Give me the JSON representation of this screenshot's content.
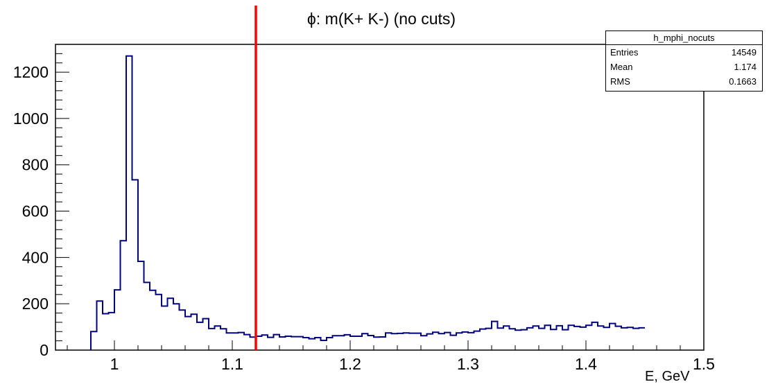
{
  "chart_data": {
    "type": "histogram",
    "title": "ϕ: m(K+ K-) (no cuts)",
    "xlabel": "E, GeV",
    "ylabel": "",
    "xlim": [
      0.95,
      1.5
    ],
    "ylim": [
      0,
      1320
    ],
    "bin_width": 0.005,
    "x_start": 0.98,
    "xticks": [
      {
        "value": 1.0,
        "label": "1"
      },
      {
        "value": 1.1,
        "label": "1.1"
      },
      {
        "value": 1.2,
        "label": "1.2"
      },
      {
        "value": 1.3,
        "label": "1.3"
      },
      {
        "value": 1.4,
        "label": "1.4"
      },
      {
        "value": 1.5,
        "label": "1.5"
      }
    ],
    "yticks": [
      {
        "value": 0,
        "label": "0"
      },
      {
        "value": 200,
        "label": "200"
      },
      {
        "value": 400,
        "label": "400"
      },
      {
        "value": 600,
        "label": "600"
      },
      {
        "value": 800,
        "label": "800"
      },
      {
        "value": 1000,
        "label": "1000"
      },
      {
        "value": 1200,
        "label": "1200"
      }
    ],
    "series": [
      {
        "color": "#00007f",
        "values": [
          80,
          212,
          157,
          162,
          260,
          472,
          1270,
          735,
          383,
          292,
          258,
          240,
          190,
          224,
          200,
          173,
          145,
          155,
          120,
          136,
          93,
          104,
          92,
          74,
          74,
          76,
          67,
          56,
          60,
          65,
          55,
          67,
          57,
          60,
          58,
          58,
          54,
          49,
          54,
          42,
          54,
          62,
          62,
          66,
          60,
          60,
          71,
          63,
          56,
          57,
          74,
          71,
          72,
          74,
          73,
          73,
          62,
          70,
          77,
          71,
          76,
          64,
          74,
          78,
          75,
          82,
          91,
          94,
          124,
          95,
          104,
          92,
          86,
          88,
          96,
          104,
          94,
          107,
          89,
          105,
          88,
          107,
          102,
          99,
          107,
          120,
          104,
          98,
          115,
          103,
          96,
          98,
          94,
          96
        ]
      }
    ],
    "marker": {
      "x": 1.12,
      "color": "#ff0000"
    },
    "stats_box": {
      "name": "h_mphi_nocuts",
      "rows": [
        {
          "label": "Entries",
          "value": "14549"
        },
        {
          "label": "Mean",
          "value": "1.174"
        },
        {
          "label": "RMS",
          "value": "0.1663"
        }
      ]
    }
  }
}
